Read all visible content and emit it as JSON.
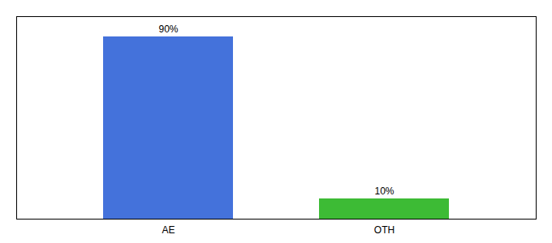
{
  "chart_data": {
    "type": "bar",
    "categories": [
      "AE",
      "OTH"
    ],
    "values": [
      90,
      10
    ],
    "value_labels": [
      "90%",
      "10%"
    ],
    "colors": [
      "#4472db",
      "#3dbb35"
    ],
    "ylim": [
      0,
      100
    ],
    "data_labels": true,
    "tick_labels": "x",
    "grid": false
  }
}
